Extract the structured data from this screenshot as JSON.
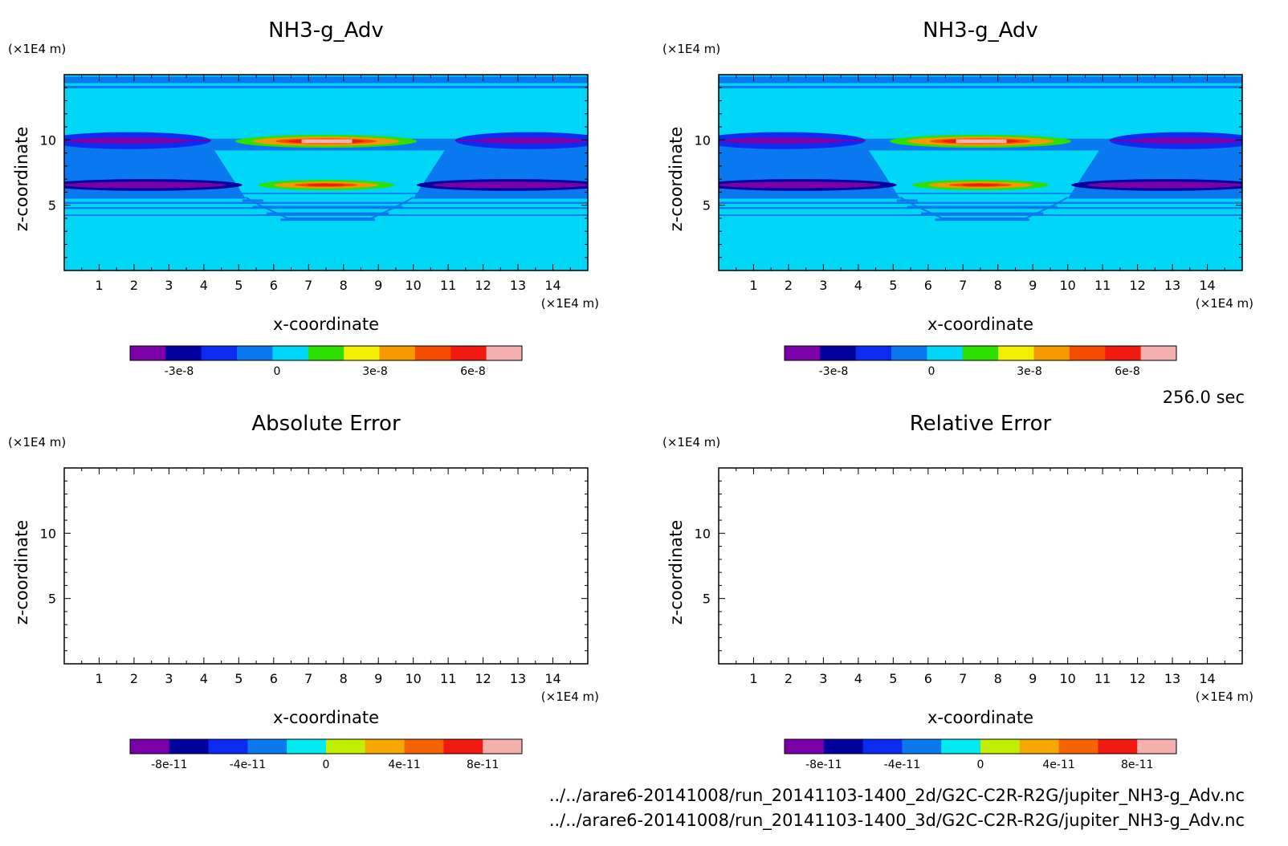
{
  "footer": {
    "time": "256.0 sec",
    "path1": "../../arare6-20141008/run_20141103-1400_2d/G2C-C2R-R2G/jupiter_NH3-g_Adv.nc",
    "path2": "../../arare6-20141008/run_20141103-1400_3d/G2C-C2R-R2G/jupiter_NH3-g_Adv.nc"
  },
  "chart_data": [
    {
      "type": "heatmap",
      "title": "NH3-g_Adv",
      "xlabel": "x-coordinate",
      "ylabel": "z-coordinate",
      "x_unit": "(×1E4 m)",
      "y_unit": "(×1E4 m)",
      "xlim": [
        0,
        15
      ],
      "ylim": [
        0,
        15
      ],
      "x_ticks": [
        1,
        2,
        3,
        4,
        5,
        6,
        7,
        8,
        9,
        10,
        11,
        12,
        13,
        14
      ],
      "y_ticks": [
        5,
        10
      ],
      "colorbar": {
        "colors": [
          "#7b00a8",
          "#00009c",
          "#0b2cf0",
          "#0a78ee",
          "#00d6f6",
          "#2ee000",
          "#f2ee00",
          "#f49a00",
          "#f64c00",
          "#f21a10",
          "#f6b0b0"
        ],
        "labels": [
          "-3e-8",
          "0",
          "3e-8",
          "6e-8"
        ],
        "label_positions": [
          -3e-08,
          0,
          3e-08,
          6e-08
        ],
        "range": [
          -4.5e-08,
          7.5e-08
        ]
      },
      "features": [
        {
          "x": 7.5,
          "z": 9.9,
          "peak": 7e-08,
          "note": "upper positive band"
        },
        {
          "x": 7.5,
          "z": 6.5,
          "peak": 5e-08,
          "note": "lower positive band"
        },
        {
          "x_ranges": [
            [
              0,
              4
            ],
            [
              11,
              15
            ]
          ],
          "z": [
            10,
            6.5
          ],
          "value": -3e-08,
          "note": "negative lobes at domain edges"
        }
      ]
    },
    {
      "type": "heatmap",
      "title": "NH3-g_Adv",
      "xlabel": "x-coordinate",
      "ylabel": "z-coordinate",
      "x_unit": "(×1E4 m)",
      "y_unit": "(×1E4 m)",
      "xlim": [
        0,
        15
      ],
      "ylim": [
        0,
        15
      ],
      "x_ticks": [
        1,
        2,
        3,
        4,
        5,
        6,
        7,
        8,
        9,
        10,
        11,
        12,
        13,
        14
      ],
      "y_ticks": [
        5,
        10
      ],
      "colorbar": {
        "colors": [
          "#7b00a8",
          "#00009c",
          "#0b2cf0",
          "#0a78ee",
          "#00d6f6",
          "#2ee000",
          "#f2ee00",
          "#f49a00",
          "#f64c00",
          "#f21a10",
          "#f6b0b0"
        ],
        "labels": [
          "-3e-8",
          "0",
          "3e-8",
          "6e-8"
        ],
        "label_positions": [
          -3e-08,
          0,
          3e-08,
          6e-08
        ],
        "range": [
          -4.5e-08,
          7.5e-08
        ]
      }
    },
    {
      "type": "heatmap",
      "title": "Absolute Error",
      "xlabel": "x-coordinate",
      "ylabel": "z-coordinate",
      "x_unit": "(×1E4 m)",
      "y_unit": "(×1E4 m)",
      "xlim": [
        0,
        15
      ],
      "ylim": [
        0,
        15
      ],
      "x_ticks": [
        1,
        2,
        3,
        4,
        5,
        6,
        7,
        8,
        9,
        10,
        11,
        12,
        13,
        14
      ],
      "y_ticks": [
        5,
        10
      ],
      "values": "empty",
      "colorbar": {
        "colors": [
          "#7b00a8",
          "#00009c",
          "#0b2cf0",
          "#0a78ee",
          "#00eaf0",
          "#c2ee00",
          "#f4a800",
          "#f66400",
          "#f21a10",
          "#f6b0b0"
        ],
        "labels": [
          "-8e-11",
          "-4e-11",
          "0",
          "4e-11",
          "8e-11"
        ],
        "label_positions": [
          -8e-11,
          -4e-11,
          0,
          4e-11,
          8e-11
        ],
        "range": [
          -1e-10,
          1e-10
        ]
      }
    },
    {
      "type": "heatmap",
      "title": "Relative Error",
      "xlabel": "x-coordinate",
      "ylabel": "z-coordinate",
      "x_unit": "(×1E4 m)",
      "y_unit": "(×1E4 m)",
      "xlim": [
        0,
        15
      ],
      "ylim": [
        0,
        15
      ],
      "x_ticks": [
        1,
        2,
        3,
        4,
        5,
        6,
        7,
        8,
        9,
        10,
        11,
        12,
        13,
        14
      ],
      "y_ticks": [
        5,
        10
      ],
      "values": "empty",
      "colorbar": {
        "colors": [
          "#7b00a8",
          "#00009c",
          "#0b2cf0",
          "#0a78ee",
          "#00eaf0",
          "#c2ee00",
          "#f4a800",
          "#f66400",
          "#f21a10",
          "#f6b0b0"
        ],
        "labels": [
          "-8e-11",
          "-4e-11",
          "0",
          "4e-11",
          "8e-11"
        ],
        "label_positions": [
          -8e-11,
          -4e-11,
          0,
          4e-11,
          8e-11
        ],
        "range": [
          -1e-10,
          1e-10
        ]
      }
    }
  ]
}
